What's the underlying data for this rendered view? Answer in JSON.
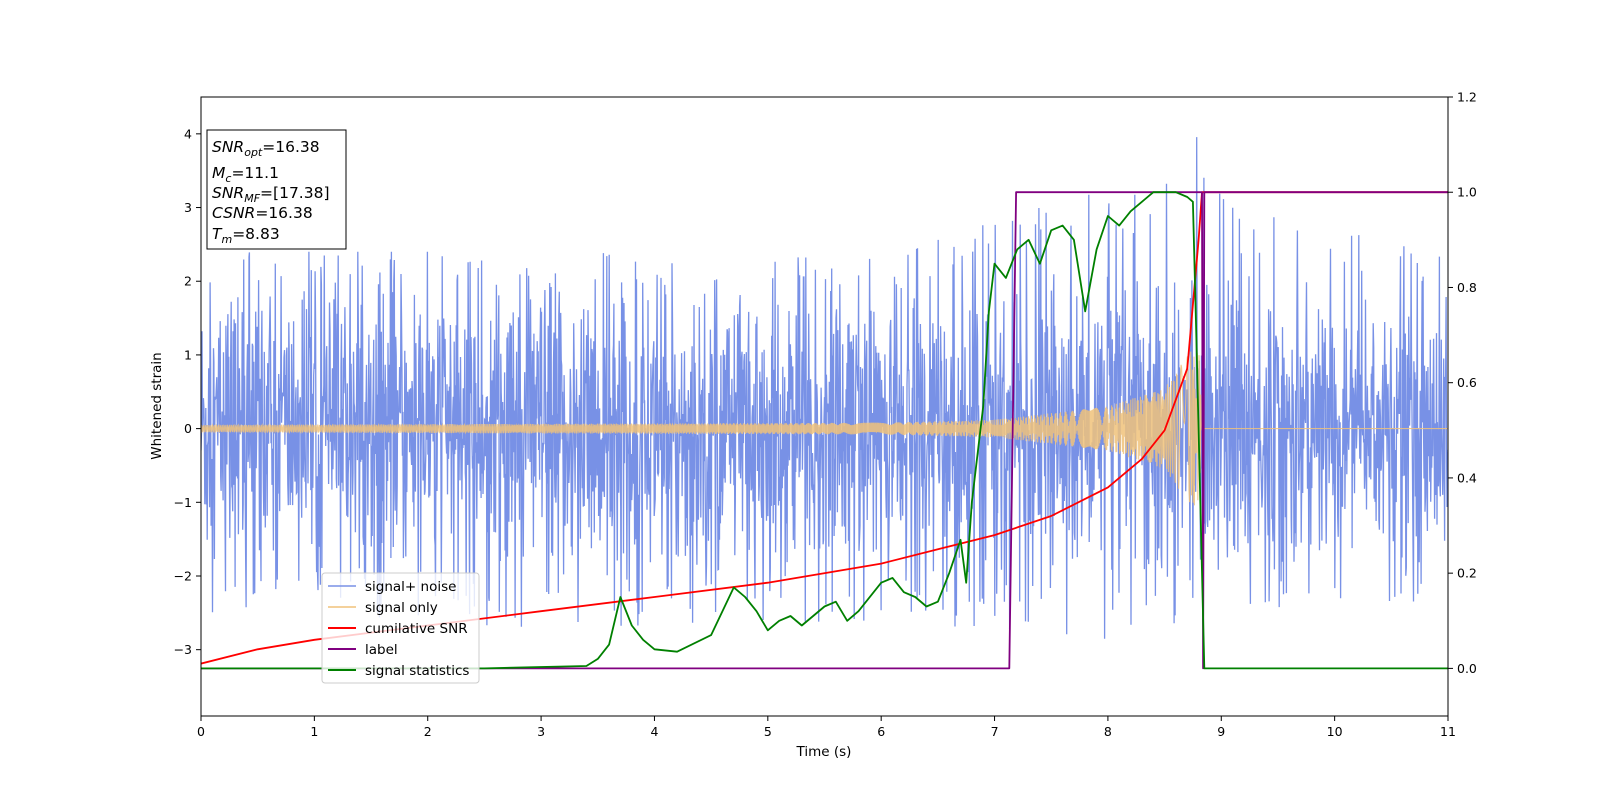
{
  "chart_data": {
    "type": "line",
    "xlabel": "Time (s)",
    "ylabel": "Whitened strain",
    "xlim": [
      0,
      11
    ],
    "ylim_left": [
      -3.9,
      4.5
    ],
    "ylim_right": [
      -0.1,
      1.2
    ],
    "x_ticks": [
      0,
      1,
      2,
      3,
      4,
      5,
      6,
      7,
      8,
      9,
      10,
      11
    ],
    "x_tick_labels": [
      "0",
      "1",
      "2",
      "3",
      "4",
      "5",
      "6",
      "7",
      "8",
      "9",
      "10",
      "11"
    ],
    "y_left_ticks": [
      -3,
      -2,
      -1,
      0,
      1,
      2,
      3,
      4
    ],
    "y_left_tick_labels": [
      "−3",
      "−2",
      "−1",
      "0",
      "1",
      "2",
      "3",
      "4"
    ],
    "y_right_ticks": [
      0.0,
      0.2,
      0.4,
      0.6,
      0.8,
      1.0,
      1.2
    ],
    "y_right_tick_labels": [
      "0.0",
      "0.2",
      "0.4",
      "0.6",
      "0.8",
      "1.0",
      "1.2"
    ],
    "grid": false,
    "legend_position": "lower-left",
    "annotation": {
      "lines": [
        {
          "var": "SNR",
          "sub": "opt",
          "rest": "=16.38"
        },
        {
          "var": "M",
          "sub": "c",
          "rest": "=11.1"
        },
        {
          "var": "SNR",
          "sub": "MF",
          "rest": "=[17.38]"
        },
        {
          "var": "CSNR",
          "sub": "",
          "rest": "=16.38"
        },
        {
          "var": "T",
          "sub": "m",
          "rest": "=8.83"
        }
      ]
    },
    "series": [
      {
        "name": "signal+ noise",
        "axis": "left",
        "color": "#7891e6",
        "kind": "noisy_strain",
        "noise_envelope": [
          {
            "t": 0.0,
            "max": 2.4,
            "min": -2.5
          },
          {
            "t": 3.0,
            "max": 2.4,
            "min": -2.7
          },
          {
            "t": 6.0,
            "max": 2.3,
            "min": -2.6
          },
          {
            "t": 8.5,
            "max": 3.6,
            "min": -3.0
          },
          {
            "t": 8.8,
            "max": 4.2,
            "min": -3.5
          },
          {
            "t": 9.0,
            "max": 3.2,
            "min": -2.6
          },
          {
            "t": 11.0,
            "max": 2.3,
            "min": -2.3
          }
        ]
      },
      {
        "name": "signal only",
        "axis": "left",
        "color": "#f0c27a",
        "kind": "chirp",
        "amplitude": [
          {
            "t": 0.0,
            "a": 0.05
          },
          {
            "t": 6.0,
            "a": 0.08
          },
          {
            "t": 7.0,
            "a": 0.12
          },
          {
            "t": 8.0,
            "a": 0.3
          },
          {
            "t": 8.5,
            "a": 0.55
          },
          {
            "t": 8.8,
            "a": 1.2
          },
          {
            "t": 8.83,
            "a": 0.0
          },
          {
            "t": 11.0,
            "a": 0.0
          }
        ]
      },
      {
        "name": "cumilative SNR",
        "axis": "right",
        "color": "#ff0000",
        "x": [
          0,
          0.5,
          1,
          2,
          3,
          4,
          5,
          6,
          6.5,
          7,
          7.5,
          8,
          8.3,
          8.5,
          8.7,
          8.8,
          8.83,
          11
        ],
        "y": [
          0.01,
          0.04,
          0.06,
          0.09,
          0.12,
          0.15,
          0.18,
          0.22,
          0.25,
          0.28,
          0.32,
          0.38,
          0.44,
          0.5,
          0.63,
          0.9,
          1.0,
          1.0
        ]
      },
      {
        "name": "label",
        "axis": "right",
        "color": "#800080",
        "x": [
          0,
          7.13,
          7.19,
          8.83,
          8.84,
          8.85,
          11
        ],
        "y": [
          0,
          0,
          1,
          1,
          0,
          1,
          1
        ]
      },
      {
        "name": "signal statistics",
        "axis": "right",
        "color": "#008000",
        "x": [
          0,
          2.5,
          3.0,
          3.4,
          3.5,
          3.6,
          3.7,
          3.8,
          3.9,
          4.0,
          4.2,
          4.5,
          4.7,
          4.8,
          4.9,
          5.0,
          5.1,
          5.2,
          5.3,
          5.5,
          5.6,
          5.7,
          5.8,
          6.0,
          6.1,
          6.2,
          6.3,
          6.4,
          6.5,
          6.6,
          6.7,
          6.75,
          6.8,
          6.9,
          6.95,
          7.0,
          7.1,
          7.2,
          7.3,
          7.4,
          7.5,
          7.6,
          7.7,
          7.8,
          7.9,
          8.0,
          8.1,
          8.2,
          8.3,
          8.4,
          8.6,
          8.7,
          8.75,
          8.78,
          8.82,
          8.85,
          8.9,
          11
        ],
        "y": [
          0.0,
          0.0,
          0.003,
          0.005,
          0.02,
          0.05,
          0.15,
          0.09,
          0.06,
          0.04,
          0.035,
          0.07,
          0.17,
          0.15,
          0.12,
          0.08,
          0.1,
          0.11,
          0.09,
          0.13,
          0.14,
          0.1,
          0.12,
          0.18,
          0.19,
          0.16,
          0.15,
          0.13,
          0.14,
          0.2,
          0.27,
          0.18,
          0.35,
          0.55,
          0.75,
          0.85,
          0.82,
          0.88,
          0.9,
          0.85,
          0.92,
          0.93,
          0.9,
          0.75,
          0.88,
          0.95,
          0.93,
          0.96,
          0.98,
          1.0,
          1.0,
          0.99,
          0.98,
          0.7,
          0.3,
          0.0,
          0.0,
          0.0
        ]
      }
    ]
  }
}
